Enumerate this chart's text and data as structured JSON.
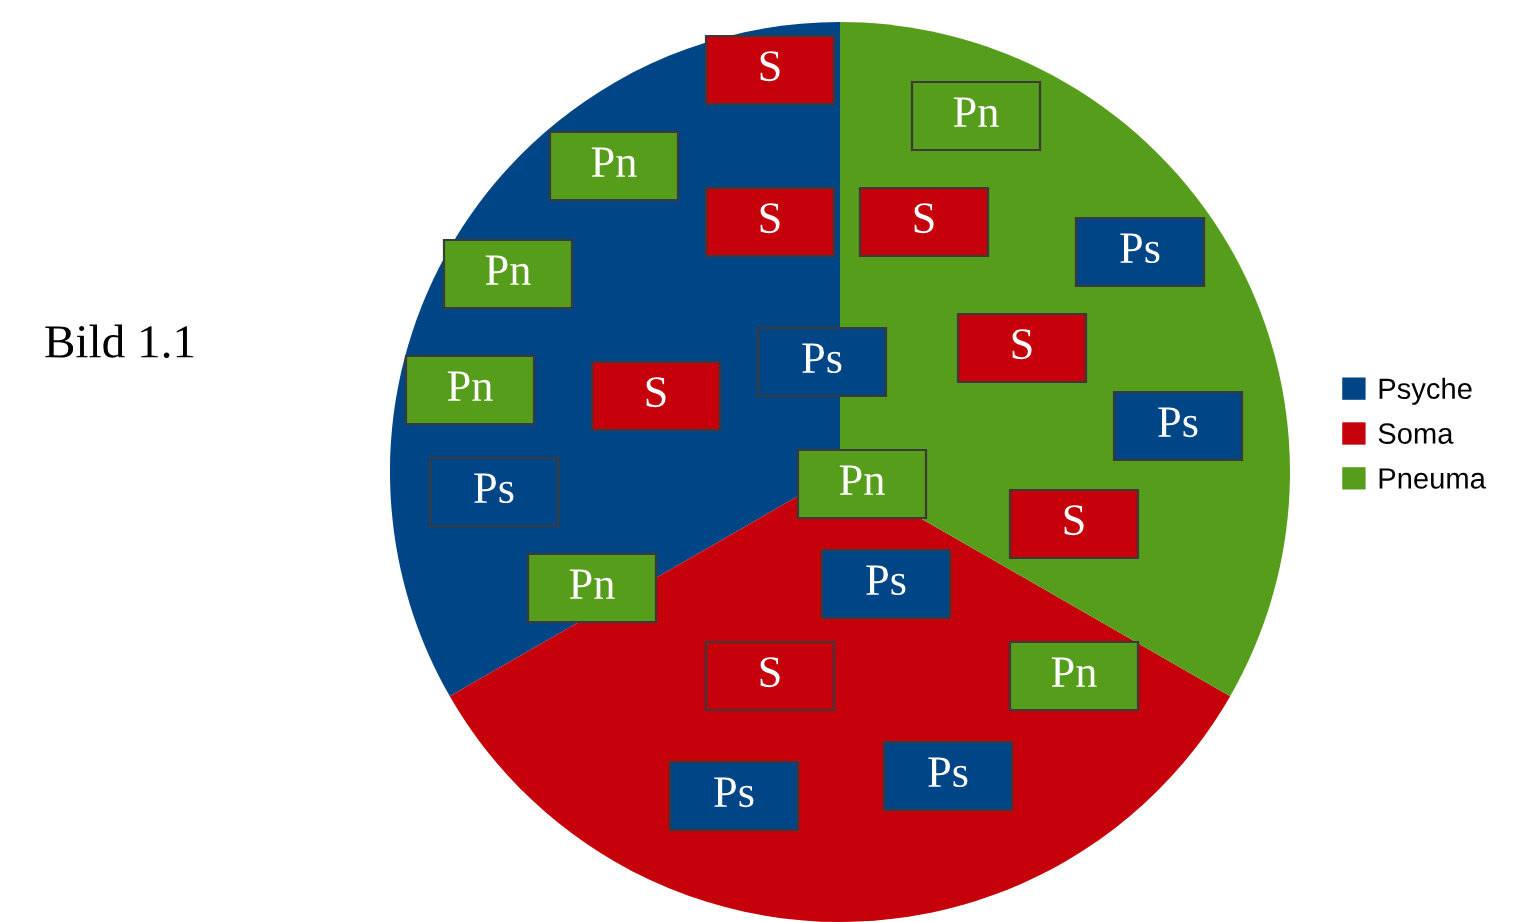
{
  "chart_data": {
    "type": "pie",
    "title": "Bild 1.1",
    "categories": [
      "Psyche",
      "Soma",
      "Pneuma"
    ],
    "values": [
      33.3,
      33.4,
      33.3
    ],
    "colors": [
      "#004586",
      "#c5000b",
      "#579d1c"
    ],
    "legend": "right",
    "annotations": [
      "S",
      "Pn",
      "Pn",
      "S",
      "S",
      "Ps",
      "Pn",
      "S",
      "Ps",
      "Pn",
      "S",
      "Ps",
      "Pn",
      "Ps",
      "S",
      "Pn",
      "Ps",
      "S",
      "Pn",
      "Ps",
      "Ps"
    ]
  }
}
